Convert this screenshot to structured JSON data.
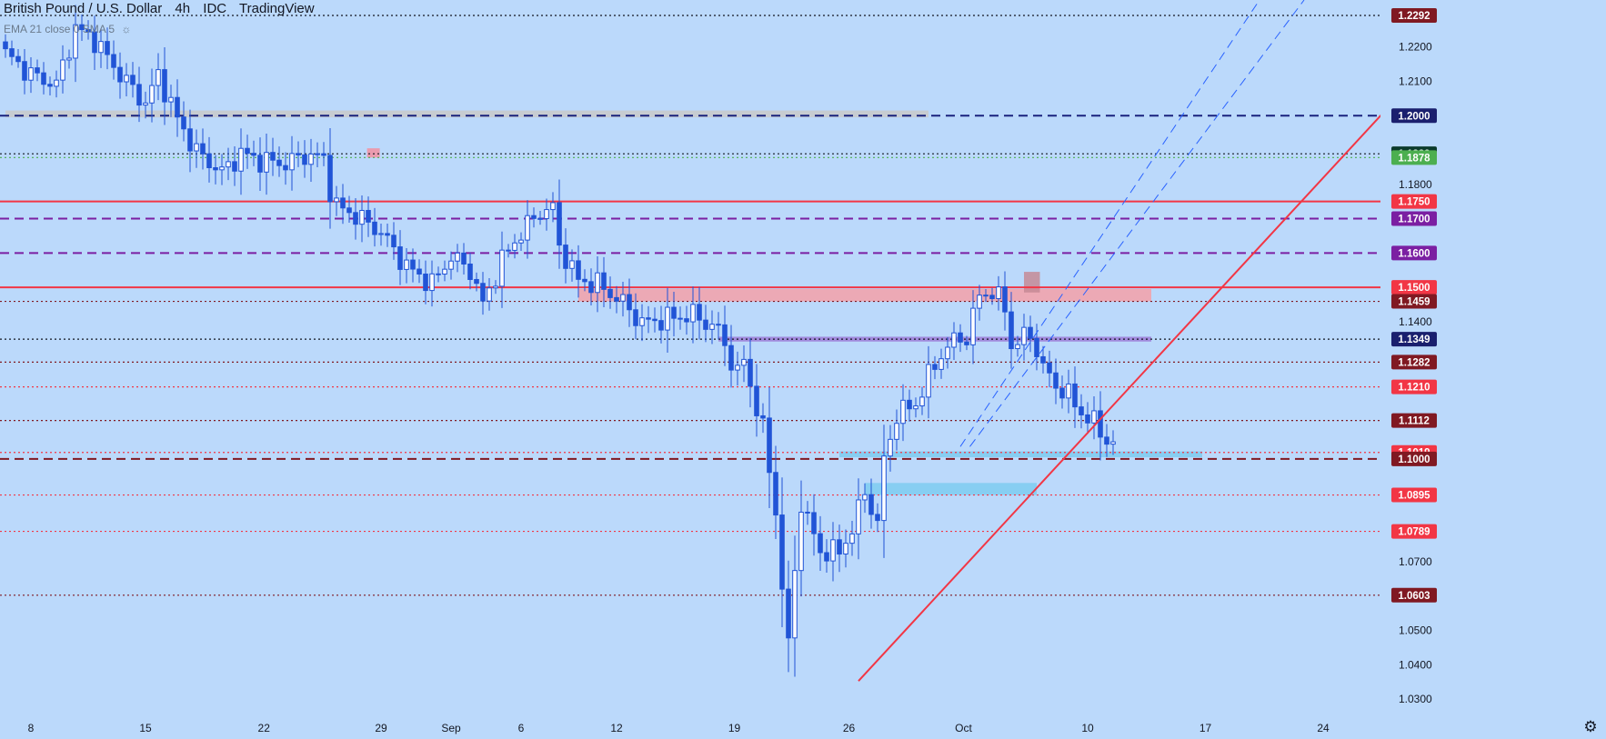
{
  "header": {
    "symbol": "British Pound / U.S. Dollar",
    "interval": "4h",
    "exchange": "IDC",
    "platform": "TradingView"
  },
  "indicator_legend": "EMA 21 close 0 SMA 5",
  "icons": {
    "visibility": "eye-crossed-icon",
    "settings": "gear-icon"
  },
  "colors": {
    "background": "#bbd9fb",
    "candle": "#2154d6",
    "red_line": "#f23645",
    "purple_dash": "#7b1fa2",
    "black_dotted": "#131722",
    "zone_red": "#f4a0a8",
    "zone_blue": "#7ecbf0",
    "zone_gray": "#c9c9c9"
  },
  "chart_data": {
    "type": "candlestick",
    "title": "British Pound / U.S. Dollar",
    "ylim": [
      1.0245,
      1.2337
    ],
    "x_tick_labels": [
      "8",
      "15",
      "22",
      "29",
      "Sep",
      "6",
      "12",
      "19",
      "26",
      "Oct",
      "10",
      "17",
      "24"
    ],
    "y_tick_labels": [
      "1.2200",
      "1.2100",
      "1.1800",
      "1.1400",
      "1.0700",
      "1.0500",
      "1.0400",
      "1.0300"
    ],
    "price_labels": [
      {
        "value": "1.2292",
        "color": "#801922"
      },
      {
        "value": "1.2000",
        "color": "#1a1f6e"
      },
      {
        "value": "1.1889",
        "color": "#0b3b2b"
      },
      {
        "value": "1.1878",
        "color": "#4caf50"
      },
      {
        "value": "1.1750",
        "color": "#f23645"
      },
      {
        "value": "1.1700",
        "color": "#7b1fa2"
      },
      {
        "value": "1.1600",
        "color": "#7b1fa2"
      },
      {
        "value": "1.1500",
        "color": "#f23645"
      },
      {
        "value": "1.1459",
        "color": "#801922"
      },
      {
        "value": "1.1349",
        "color": "#1a1f6e"
      },
      {
        "value": "1.1282",
        "color": "#801922"
      },
      {
        "value": "1.1210",
        "color": "#f23645"
      },
      {
        "value": "1.1112",
        "color": "#801922"
      },
      {
        "value": "1.1019",
        "color": "#f23645"
      },
      {
        "value": "1.1000",
        "color": "#801922"
      },
      {
        "value": "1.0895",
        "color": "#f23645"
      },
      {
        "value": "1.0789",
        "color": "#f23645"
      },
      {
        "value": "1.0603",
        "color": "#801922"
      }
    ],
    "price_path": [
      [
        0,
        1.218
      ],
      [
        4,
        1.212
      ],
      [
        8,
        1.209
      ],
      [
        11,
        1.2255
      ],
      [
        14,
        1.222
      ],
      [
        18,
        1.212
      ],
      [
        22,
        1.2035
      ],
      [
        24,
        1.212
      ],
      [
        27,
        1.199
      ],
      [
        30,
        1.1895
      ],
      [
        34,
        1.1835
      ],
      [
        37,
        1.189
      ],
      [
        40,
        1.187
      ],
      [
        44,
        1.186
      ],
      [
        47,
        1.1885
      ],
      [
        50,
        1.1875
      ],
      [
        51.5,
        1.174
      ],
      [
        55,
        1.171
      ],
      [
        59,
        1.166
      ],
      [
        63,
        1.156
      ],
      [
        67,
        1.151
      ],
      [
        70,
        1.159
      ],
      [
        73,
        1.155
      ],
      [
        75,
        1.145
      ],
      [
        78,
        1.158
      ],
      [
        81,
        1.166
      ],
      [
        84,
        1.172
      ],
      [
        86,
        1.173
      ],
      [
        87,
        1.162
      ],
      [
        90,
        1.152
      ],
      [
        93,
        1.151
      ],
      [
        97,
        1.1455
      ],
      [
        100,
        1.1395
      ],
      [
        104,
        1.141
      ],
      [
        108,
        1.142
      ],
      [
        112,
        1.1375
      ],
      [
        115,
        1.1245
      ],
      [
        116,
        1.129
      ],
      [
        117,
        1.1215
      ],
      [
        119,
        1.1085
      ],
      [
        121,
        1.085
      ],
      [
        122,
        1.0625
      ],
      [
        123,
        1.0455
      ],
      [
        124,
        1.068
      ],
      [
        125,
        1.087
      ],
      [
        128,
        1.073
      ],
      [
        131,
        1.073
      ],
      [
        133,
        1.0795
      ],
      [
        135,
        1.0905
      ],
      [
        137,
        1.081
      ],
      [
        138,
        1.0995
      ],
      [
        140,
        1.113
      ],
      [
        143,
        1.116
      ],
      [
        145,
        1.124
      ],
      [
        147,
        1.1305
      ],
      [
        149,
        1.1345
      ],
      [
        151,
        1.1355
      ],
      [
        153,
        1.1475
      ],
      [
        155,
        1.149
      ],
      [
        157,
        1.144
      ],
      [
        158,
        1.133
      ],
      [
        161,
        1.1365
      ],
      [
        163,
        1.1265
      ],
      [
        165,
        1.1215
      ],
      [
        167,
        1.1185
      ],
      [
        169,
        1.1135
      ],
      [
        171,
        1.1105
      ],
      [
        173,
        1.1055
      ],
      [
        174,
        1.1045
      ]
    ],
    "overlays": {
      "horizontal_lines": [
        {
          "value": 1.2292,
          "style": "dotted",
          "color": "#131722"
        },
        {
          "value": 1.2,
          "style": "dashed",
          "color": "#1a237e"
        },
        {
          "value": 1.1889,
          "style": "dotted",
          "color": "#131722"
        },
        {
          "value": 1.1878,
          "style": "dotted",
          "color": "#4caf50"
        },
        {
          "value": 1.175,
          "style": "solid",
          "color": "#f23645"
        },
        {
          "value": 1.17,
          "style": "dashed",
          "color": "#7b1fa2"
        },
        {
          "value": 1.16,
          "style": "dashed",
          "color": "#7b1fa2"
        },
        {
          "value": 1.15,
          "style": "solid",
          "color": "#f23645"
        },
        {
          "value": 1.1459,
          "style": "dotted",
          "color": "#801922"
        },
        {
          "value": 1.1349,
          "style": "dotted",
          "color": "#131722"
        },
        {
          "value": 1.1282,
          "style": "dotted",
          "color": "#801922"
        },
        {
          "value": 1.121,
          "style": "dotted",
          "color": "#f23645"
        },
        {
          "value": 1.1112,
          "style": "dotted",
          "color": "#801922"
        },
        {
          "value": 1.1019,
          "style": "dotted",
          "color": "#f23645"
        },
        {
          "value": 1.1,
          "style": "dashed",
          "color": "#801922"
        },
        {
          "value": 1.0895,
          "style": "dotted",
          "color": "#f23645"
        },
        {
          "value": 1.0789,
          "style": "dotted",
          "color": "#f23645"
        },
        {
          "value": 1.0603,
          "style": "dotted",
          "color": "#801922"
        }
      ],
      "zones": [
        {
          "from_bar": 0,
          "to_bar": 145,
          "low": 1.1995,
          "high": 1.2015,
          "color": "#c9c9c9"
        },
        {
          "from_bar": 90,
          "to_bar": 180,
          "low": 1.1459,
          "high": 1.1495,
          "color": "#f4a0a8"
        },
        {
          "from_bar": 112,
          "to_bar": 180,
          "low": 1.1342,
          "high": 1.1356,
          "color": "#9c7bd6"
        },
        {
          "from_bar": 131,
          "to_bar": 188,
          "low": 1.1005,
          "high": 1.1022,
          "color": "#7ecbf0"
        },
        {
          "from_bar": 135,
          "to_bar": 162,
          "low": 1.0895,
          "high": 1.093,
          "color": "#7ecbf0"
        },
        {
          "from_bar": 160,
          "to_bar": 162.5,
          "low": 1.1485,
          "high": 1.1545,
          "color": "#c58a95"
        },
        {
          "from_bar": 56.8,
          "to_bar": 58.8,
          "low": 1.1878,
          "high": 1.1905,
          "color": "#f38fa0"
        }
      ],
      "trendlines": [
        {
          "from": [
            134,
            1.0353
          ],
          "to": [
            219,
            1.206
          ],
          "style": "solid",
          "color": "#f23645"
        },
        {
          "from": [
            150,
            1.1036
          ],
          "to": [
            197,
            1.2337
          ],
          "style": "dashed",
          "color": "#2962ff"
        },
        {
          "from": [
            151.5,
            1.1036
          ],
          "to": [
            204,
            1.2337
          ],
          "style": "dashed",
          "color": "#2962ff"
        }
      ]
    }
  }
}
